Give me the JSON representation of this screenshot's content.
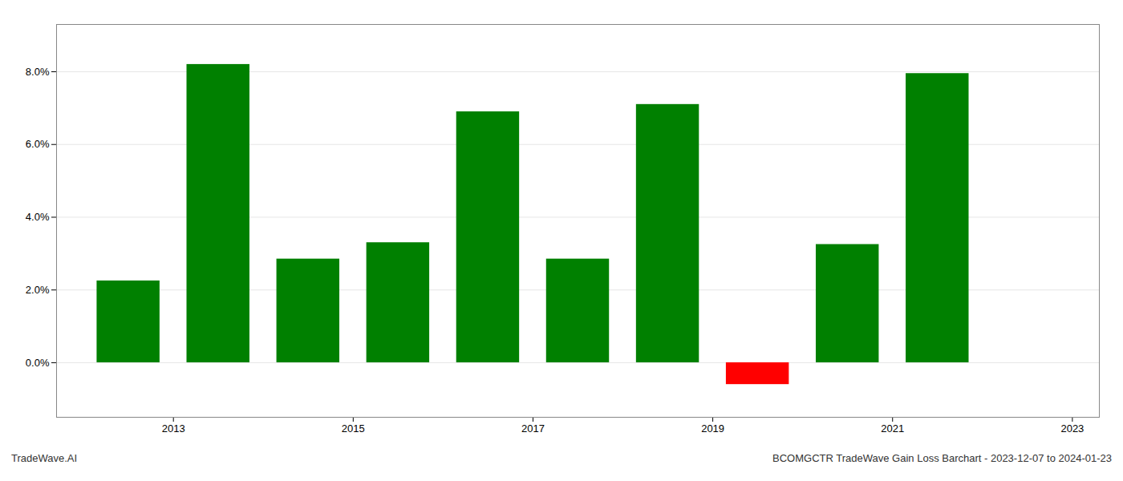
{
  "chart_data": {
    "type": "bar",
    "x": [
      2013,
      2014,
      2015,
      2016,
      2017,
      2018,
      2019,
      2020,
      2021,
      2022
    ],
    "values": [
      0.0225,
      0.082,
      0.0285,
      0.033,
      0.069,
      0.0285,
      0.071,
      -0.006,
      0.0325,
      0.0795
    ],
    "colors": [
      "#008000",
      "#008000",
      "#008000",
      "#008000",
      "#008000",
      "#008000",
      "#008000",
      "#ff0000",
      "#008000",
      "#008000"
    ],
    "xlim": [
      2012.2,
      2023.8
    ],
    "xticks": [
      {
        "value": 2013.5,
        "label": "2013"
      },
      {
        "value": 2015.5,
        "label": "2015"
      },
      {
        "value": 2017.5,
        "label": "2017"
      },
      {
        "value": 2019.5,
        "label": "2019"
      },
      {
        "value": 2021.5,
        "label": "2021"
      },
      {
        "value": 2023.5,
        "label": "2023"
      }
    ],
    "ylim": [
      -0.015,
      0.093
    ],
    "yticks": [
      {
        "value": 0.0,
        "label": "0.0%"
      },
      {
        "value": 0.02,
        "label": "2.0%"
      },
      {
        "value": 0.04,
        "label": "4.0%"
      },
      {
        "value": 0.06,
        "label": "6.0%"
      },
      {
        "value": 0.08,
        "label": "8.0%"
      }
    ],
    "grid": true,
    "annotations": [
      "TradeWave.AI",
      "BCOMGCTR TradeWave Gain Loss Barchart - 2023-12-07 to 2024-01-23"
    ]
  }
}
